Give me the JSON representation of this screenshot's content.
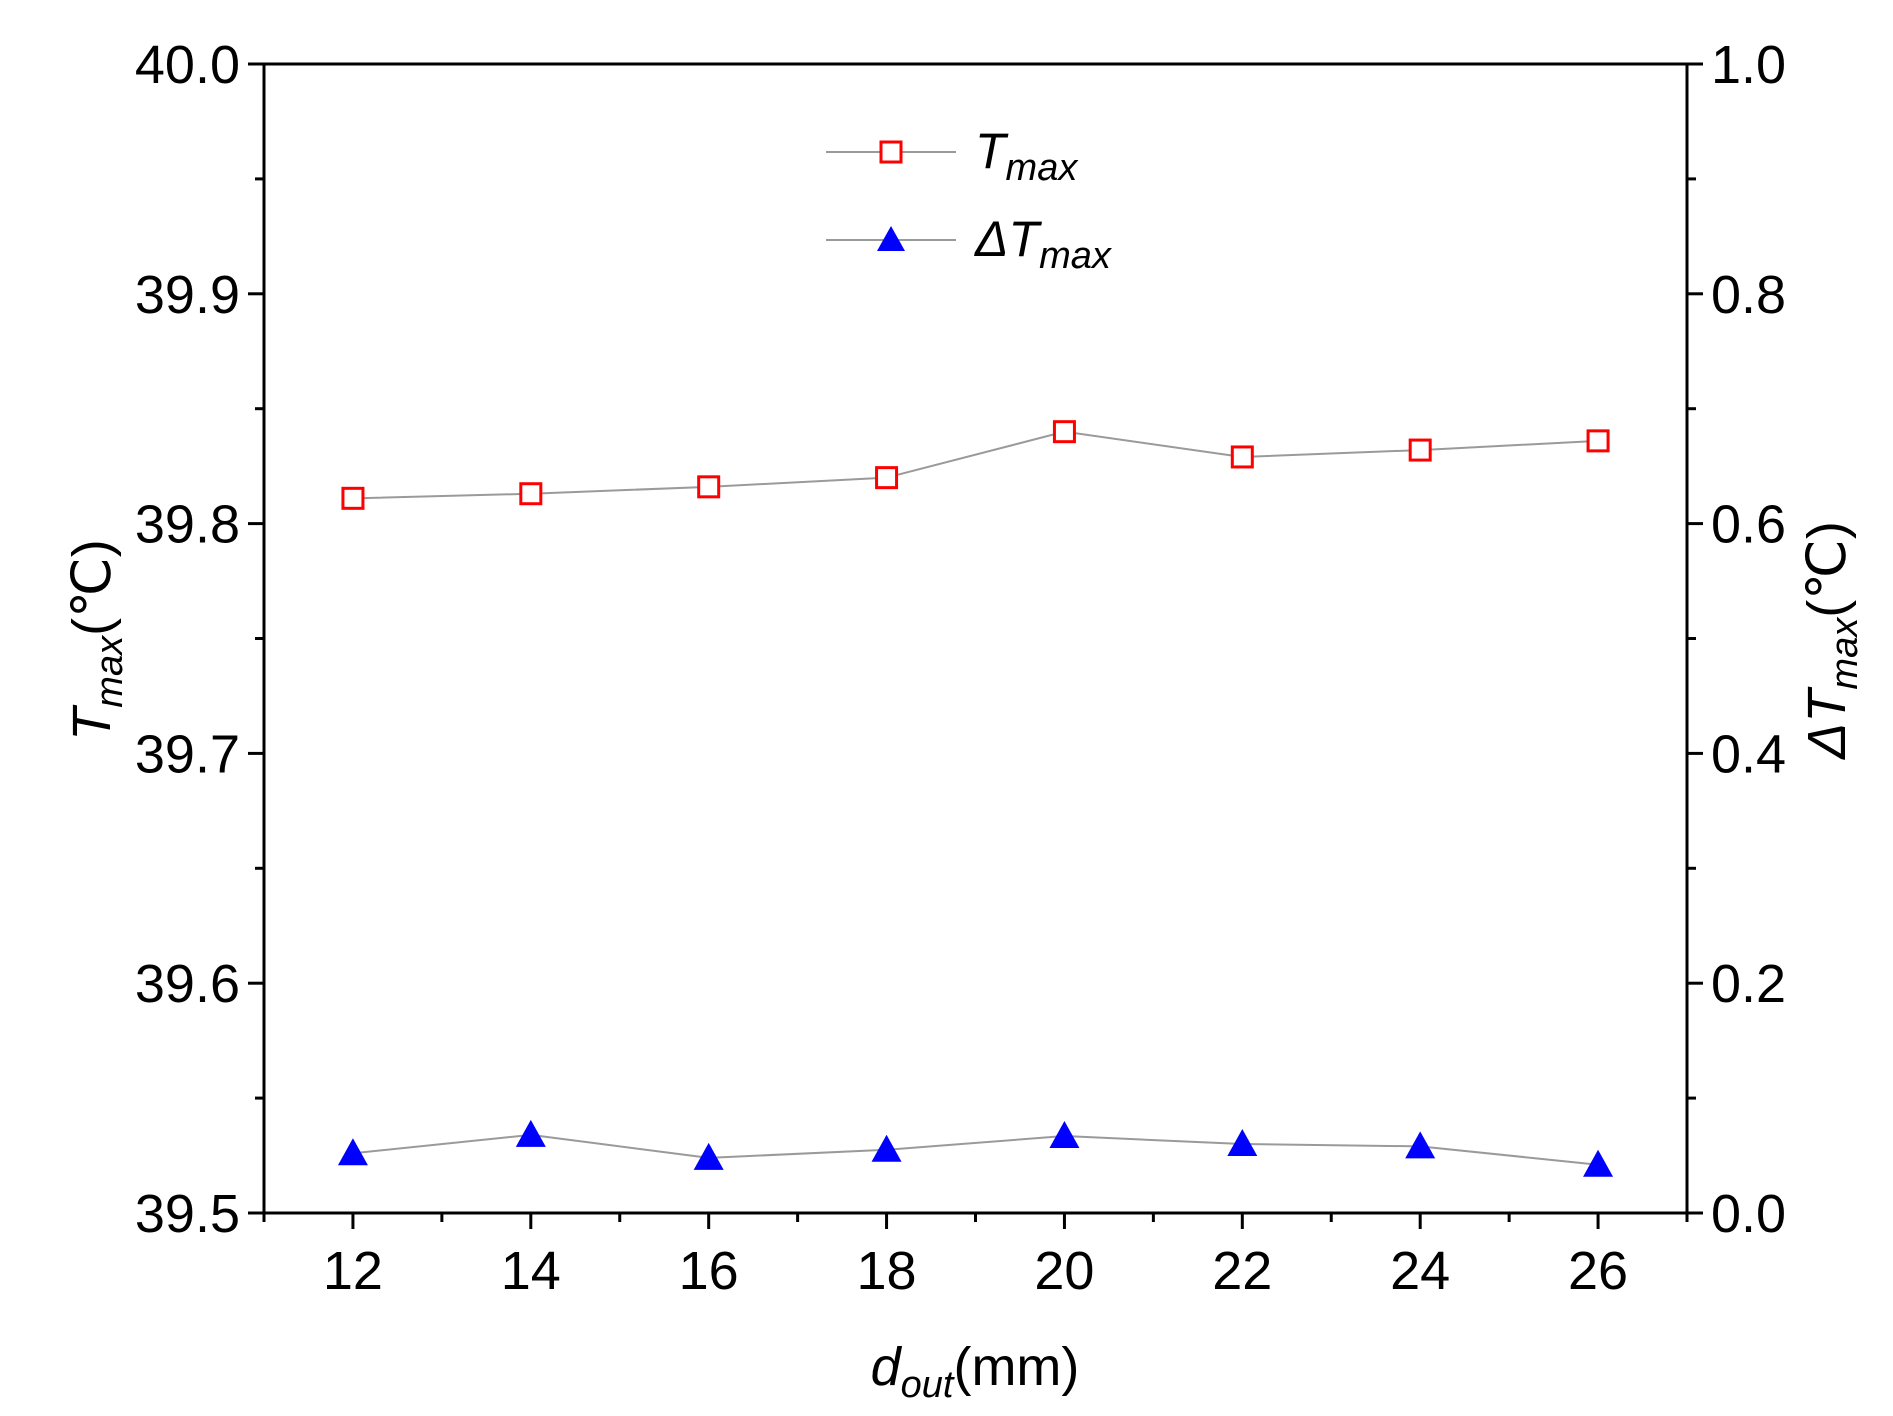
{
  "chart_data": {
    "type": "line",
    "dual_axis": true,
    "x": [
      12,
      14,
      16,
      18,
      20,
      22,
      24,
      26
    ],
    "x_ticks": [
      "12",
      "14",
      "16",
      "18",
      "20",
      "22",
      "24",
      "26"
    ],
    "xlim": [
      11,
      27
    ],
    "xlabel": {
      "main": "d",
      "sub": "out",
      "unit": "(mm)"
    },
    "y_left": {
      "label": {
        "main": "T",
        "sub": "max",
        "unit": "(℃)"
      },
      "ylim": [
        39.5,
        40.0
      ],
      "ticks": [
        "39.5",
        "39.6",
        "39.7",
        "39.8",
        "39.9",
        "40.0"
      ]
    },
    "y_right": {
      "label": {
        "prefix": "Δ",
        "main": "T",
        "sub": "max",
        "unit": "(℃)"
      },
      "ylim": [
        0.0,
        1.0
      ],
      "ticks": [
        "0.0",
        "0.2",
        "0.4",
        "0.6",
        "0.8",
        "1.0"
      ]
    },
    "series": [
      {
        "name": "T_max",
        "legend": {
          "prefix": "",
          "main": "T",
          "sub": "max"
        },
        "axis": "left",
        "marker": "open-square",
        "marker_color": "#ff0000",
        "line_color": "#9a9a9a",
        "values": [
          39.811,
          39.813,
          39.816,
          39.82,
          39.84,
          39.829,
          39.832,
          39.836
        ]
      },
      {
        "name": "ΔT_max",
        "legend": {
          "prefix": "Δ",
          "main": "T",
          "sub": "max"
        },
        "axis": "right",
        "marker": "filled-triangle",
        "marker_color": "#0000ff",
        "line_color": "#9a9a9a",
        "values": [
          0.052,
          0.068,
          0.048,
          0.055,
          0.067,
          0.06,
          0.058,
          0.042
        ]
      }
    ],
    "legend_position": "top-center"
  }
}
